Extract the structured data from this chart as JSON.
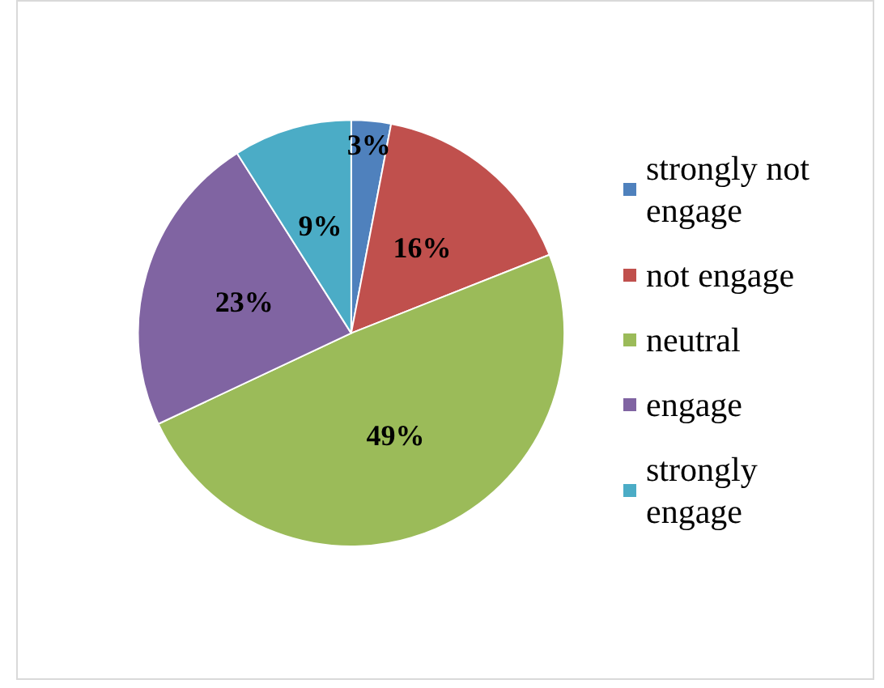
{
  "chart_data": {
    "type": "pie",
    "categories": [
      "strongly not engage",
      "not engage",
      "neutral",
      "engage",
      "strongly engage"
    ],
    "values": [
      3,
      16,
      49,
      23,
      9
    ],
    "colors": [
      "#4f81bd",
      "#c0504d",
      "#9bbb59",
      "#8064a2",
      "#4bacc6"
    ],
    "value_labels": [
      "3%",
      "16%",
      "49%",
      "23%",
      "9%"
    ],
    "legend": "right"
  }
}
